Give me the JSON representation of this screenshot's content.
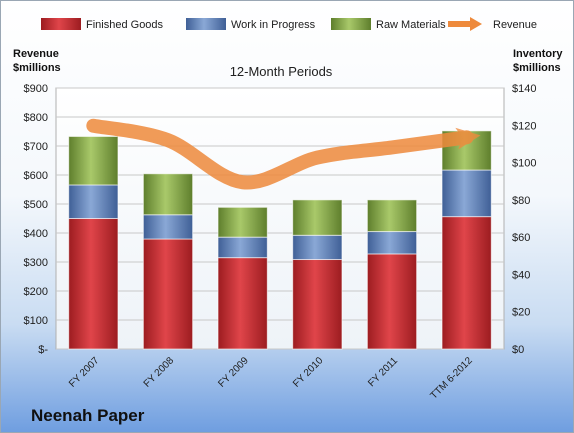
{
  "company_name": "Neenah Paper",
  "chart_data": {
    "type": "bar",
    "stacked": true,
    "title": "12-Month Periods",
    "categories": [
      "FY 2007",
      "FY 2008",
      "FY 2009",
      "FY 2010",
      "FY 2011",
      "TTM 6-2012"
    ],
    "left_axis": {
      "label_line1": "Revenue",
      "label_line2": "$millions",
      "range": [
        0,
        900
      ],
      "step": 100,
      "tick_labels": [
        "$-",
        "$100",
        "$200",
        "$300",
        "$400",
        "$500",
        "$600",
        "$700",
        "$800",
        "$900"
      ]
    },
    "right_axis": {
      "label_line1": "Inventory",
      "label_line2": "$millions",
      "range": [
        0,
        140
      ],
      "step": 20,
      "tick_labels": [
        "$0",
        "$20",
        "$40",
        "$60",
        "$80",
        "$100",
        "$120",
        "$140"
      ]
    },
    "series": [
      {
        "name": "Finished Goods",
        "axis": "right",
        "color": "#c0272d",
        "values": [
          70,
          59,
          49,
          48,
          51,
          71
        ]
      },
      {
        "name": "Work in Progress",
        "axis": "right",
        "color": "#5b7fb9",
        "values": [
          18,
          13,
          11,
          13,
          12,
          25
        ]
      },
      {
        "name": "Raw Materials",
        "axis": "right",
        "color": "#84a64b",
        "values": [
          26,
          22,
          16,
          19,
          17,
          21
        ]
      },
      {
        "name": "Revenue",
        "axis": "left",
        "type": "line",
        "color": "#ee8a3c",
        "values": [
          770,
          720,
          575,
          660,
          695,
          730
        ]
      }
    ],
    "grid": true,
    "legend_position": "top"
  }
}
